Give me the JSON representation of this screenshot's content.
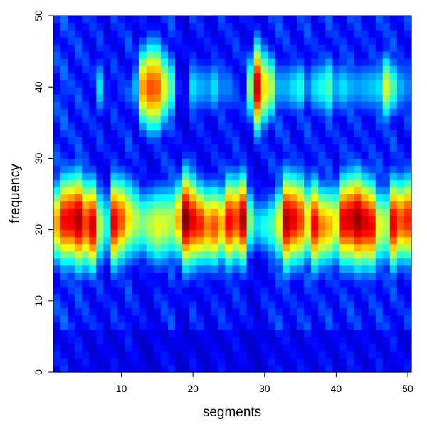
{
  "chart_data": {
    "type": "heatmap",
    "title": "",
    "xlabel": "segments",
    "ylabel": "frequency",
    "x_range": [
      1,
      50
    ],
    "y_range": [
      0,
      50
    ],
    "x_ticks": [
      10,
      20,
      30,
      40,
      50
    ],
    "y_ticks": [
      0,
      10,
      20,
      30,
      40,
      50
    ],
    "x_tick_labels": [
      "10",
      "20",
      "30",
      "40",
      "50"
    ],
    "y_tick_labels": [
      "0",
      "10",
      "20",
      "30",
      "40",
      "50"
    ],
    "colormap": [
      "#00008F",
      "#0000FF",
      "#0080FF",
      "#00FFFF",
      "#80FF80",
      "#FFFF00",
      "#FF8000",
      "#FF0000",
      "#800000"
    ],
    "value_range": [
      0,
      1
    ],
    "description_of_grid": "50 segments x 50 frequency bins; values estimated from colour",
    "band_low": {
      "center_frequency": 21,
      "intensity_by_segment": [
        0.72,
        0.88,
        0.9,
        0.96,
        0.82,
        0.92,
        0.55,
        0.4,
        0.9,
        0.8,
        0.65,
        0.55,
        0.5,
        0.55,
        0.6,
        0.58,
        0.55,
        0.7,
        1.0,
        0.9,
        0.85,
        0.75,
        0.8,
        0.7,
        0.88,
        0.82,
        0.95,
        0.5,
        0.35,
        0.4,
        0.45,
        0.6,
        0.95,
        0.9,
        0.82,
        0.65,
        0.88,
        0.75,
        0.7,
        0.62,
        0.9,
        0.92,
        0.98,
        0.92,
        0.88,
        0.6,
        0.55,
        0.9,
        0.8,
        0.85
      ],
      "width_by_segment": [
        4.0,
        4.5,
        4.5,
        4.8,
        4.5,
        4.5,
        4.0,
        3.8,
        4.5,
        4.3,
        4.2,
        4.0,
        3.5,
        3.8,
        4.0,
        4.0,
        4.0,
        4.0,
        4.8,
        4.5,
        4.0,
        4.0,
        4.0,
        3.8,
        4.5,
        4.3,
        4.5,
        3.5,
        3.0,
        3.0,
        3.5,
        4.0,
        4.8,
        4.5,
        4.5,
        4.0,
        4.5,
        4.0,
        4.0,
        4.0,
        4.5,
        4.6,
        4.8,
        4.5,
        4.5,
        4.0,
        4.0,
        4.5,
        4.2,
        4.3
      ]
    },
    "band_high": {
      "center_frequency": 40,
      "intensity_by_segment": [
        0.05,
        0.18,
        0.12,
        0.1,
        0.08,
        0.1,
        0.35,
        0.15,
        0.12,
        0.18,
        0.08,
        0.3,
        0.72,
        0.8,
        0.78,
        0.6,
        0.45,
        0.15,
        0.12,
        0.35,
        0.3,
        0.28,
        0.35,
        0.25,
        0.25,
        0.18,
        0.12,
        0.5,
        0.92,
        0.65,
        0.55,
        0.3,
        0.3,
        0.35,
        0.4,
        0.25,
        0.35,
        0.4,
        0.45,
        0.3,
        0.35,
        0.3,
        0.28,
        0.3,
        0.32,
        0.35,
        0.58,
        0.45,
        0.3,
        0.25
      ],
      "width_by_segment": [
        2.5,
        3.0,
        2.5,
        2.5,
        2.5,
        2.5,
        3.0,
        2.5,
        2.5,
        3.0,
        2.5,
        3.0,
        4.0,
        4.5,
        4.5,
        4.0,
        3.5,
        2.5,
        2.5,
        3.0,
        3.0,
        3.0,
        3.0,
        3.0,
        3.0,
        2.5,
        2.5,
        3.5,
        4.5,
        4.0,
        3.5,
        3.0,
        3.0,
        3.0,
        3.0,
        2.5,
        3.0,
        3.0,
        3.5,
        3.0,
        3.0,
        3.0,
        3.0,
        3.0,
        3.0,
        3.0,
        3.5,
        3.0,
        3.0,
        3.0
      ]
    },
    "background_level_by_segment": [
      0.22,
      0.24,
      0.2,
      0.22,
      0.2,
      0.18,
      0.2,
      0.16,
      0.2,
      0.18,
      0.22,
      0.18,
      0.16,
      0.14,
      0.18,
      0.2,
      0.22,
      0.16,
      0.14,
      0.2,
      0.18,
      0.16,
      0.18,
      0.2,
      0.18,
      0.2,
      0.18,
      0.15,
      0.14,
      0.18,
      0.2,
      0.22,
      0.2,
      0.18,
      0.2,
      0.22,
      0.18,
      0.2,
      0.22,
      0.18,
      0.2,
      0.22,
      0.2,
      0.18,
      0.2,
      0.22,
      0.2,
      0.22,
      0.18,
      0.2
    ]
  }
}
